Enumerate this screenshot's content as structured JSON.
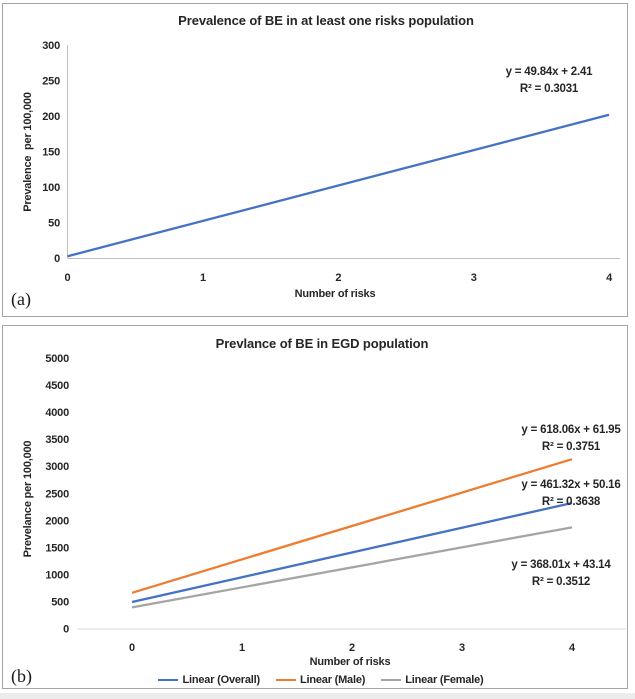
{
  "colors": {
    "blue": "#4472C4",
    "orange": "#ED7D31",
    "gray": "#A5A5A5",
    "axis_line_a": "#BFBFBF",
    "axis_line_b": "#D9D9D9",
    "text": "#262626",
    "panel_border": "#A6A6A6"
  },
  "panel_a": {
    "corner_label": "(a)"
  },
  "panel_b": {
    "corner_label": "(b)"
  },
  "chart_data": [
    {
      "type": "line",
      "title": "Prevalence of BE in at least one risks population",
      "xlabel": "Number of risks",
      "ylabel": "Prevalence  per 100,000",
      "xlim": [
        0,
        4
      ],
      "ylim": [
        0,
        300
      ],
      "xticks": [
        "0",
        "1",
        "2",
        "3",
        "4"
      ],
      "yticks": [
        "0",
        "50",
        "100",
        "150",
        "200",
        "250",
        "300"
      ],
      "grid": false,
      "legend_position": "none",
      "series": [
        {
          "id": "trendline",
          "color_key": "blue",
          "x": [
            0,
            4
          ],
          "y": [
            2.41,
            201.77
          ]
        }
      ],
      "annotations": [
        {
          "id": "equation",
          "lines": [
            "y = 49.84x + 2.41",
            "R² = 0.3031"
          ]
        }
      ]
    },
    {
      "type": "line",
      "title": "Prevlance of BE in EGD population",
      "xlabel": "Number of risks",
      "ylabel": "Prevelance per 100,000",
      "xlim": [
        0,
        4
      ],
      "ylim": [
        0,
        5000
      ],
      "xticks": [
        "0",
        "1",
        "2",
        "3",
        "4"
      ],
      "yticks": [
        "0",
        "500",
        "1000",
        "1500",
        "2000",
        "2500",
        "3000",
        "3500",
        "4000",
        "4500",
        "5000"
      ],
      "grid": false,
      "legend_position": "bottom",
      "series": [
        {
          "id": "overall",
          "name": "Linear (Overall)",
          "color_key": "blue",
          "x": [
            0,
            4
          ],
          "y": [
            490,
            2320
          ]
        },
        {
          "id": "male",
          "name": "Linear (Male)",
          "color_key": "orange",
          "x": [
            0,
            4
          ],
          "y": [
            660,
            3130
          ]
        },
        {
          "id": "female",
          "name": "Linear (Female)",
          "color_key": "gray",
          "x": [
            0,
            4
          ],
          "y": [
            390,
            1870
          ]
        }
      ],
      "annotations": [
        {
          "id": "equation-male",
          "lines": [
            "y = 618.06x + 61.95",
            "R² = 0.3751"
          ]
        },
        {
          "id": "equation-overall",
          "lines": [
            "y = 461.32x + 50.16",
            "R² = 0.3638"
          ]
        },
        {
          "id": "equation-female",
          "lines": [
            "y = 368.01x + 43.14",
            "R² = 0.3512"
          ]
        }
      ]
    }
  ]
}
